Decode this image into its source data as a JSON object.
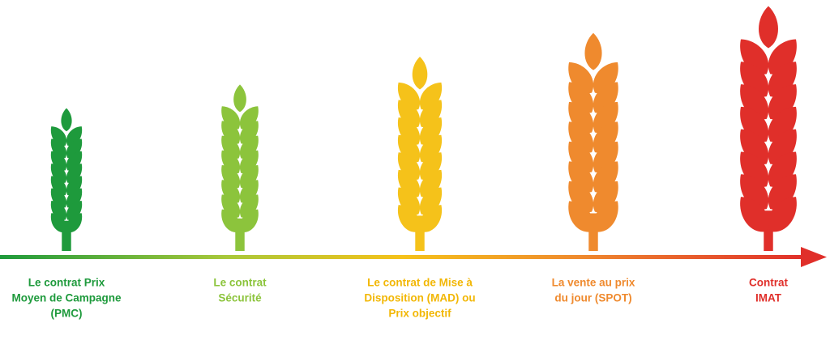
{
  "items": [
    {
      "label": [
        "Le contrat Prix",
        "Moyen de Campagne",
        "(PMC)"
      ],
      "color": "#1e9a3c"
    },
    {
      "label": [
        "Le contrat",
        "Sécurité"
      ],
      "color": "#8cc43c"
    },
    {
      "label": [
        "Le contrat de Mise à",
        "Disposition (MAD) ou",
        "Prix objectif"
      ],
      "color": "#f5c21a"
    },
    {
      "label": [
        "La vente au prix",
        "du jour (SPOT)"
      ],
      "color": "#ef8a2e"
    },
    {
      "label": [
        "Contrat",
        "IMAT"
      ],
      "color": "#e02f2a"
    }
  ]
}
